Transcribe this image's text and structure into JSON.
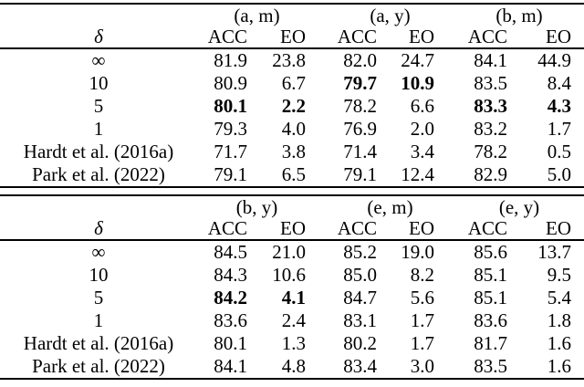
{
  "colors": {
    "background": "#ffffff",
    "text": "#000000",
    "rule": "#000000"
  },
  "tables": [
    {
      "name": "top-results-table",
      "row_axis_label": "δ",
      "groups": [
        "(a, m)",
        "(a, y)",
        "(b, m)"
      ],
      "col_headers": [
        "ACC",
        "EO",
        "ACC",
        "EO",
        "ACC",
        "EO"
      ],
      "rows": [
        {
          "label": "∞",
          "values": [
            "81.9",
            "23.8",
            "82.0",
            "24.7",
            "84.1",
            "44.9"
          ],
          "bold": []
        },
        {
          "label": "10",
          "values": [
            "80.9",
            "6.7",
            "79.7",
            "10.9",
            "83.5",
            "8.4"
          ],
          "bold": [
            2,
            3
          ]
        },
        {
          "label": "5",
          "values": [
            "80.1",
            "2.2",
            "78.2",
            "6.6",
            "83.3",
            "4.3"
          ],
          "bold": [
            0,
            1,
            4,
            5
          ]
        },
        {
          "label": "1",
          "values": [
            "79.3",
            "4.0",
            "76.9",
            "2.0",
            "83.2",
            "1.7"
          ],
          "bold": []
        },
        {
          "label": "Hardt et al. (2016a)",
          "values": [
            "71.7",
            "3.8",
            "71.4",
            "3.4",
            "78.2",
            "0.5"
          ],
          "bold": []
        },
        {
          "label": "Park et al. (2022)",
          "values": [
            "79.1",
            "6.5",
            "79.1",
            "12.4",
            "82.9",
            "5.0"
          ],
          "bold": []
        }
      ]
    },
    {
      "name": "bottom-results-table",
      "row_axis_label": "δ",
      "groups": [
        "(b, y)",
        "(e, m)",
        "(e, y)"
      ],
      "col_headers": [
        "ACC",
        "EO",
        "ACC",
        "EO",
        "ACC",
        "EO"
      ],
      "rows": [
        {
          "label": "∞",
          "values": [
            "84.5",
            "21.0",
            "85.2",
            "19.0",
            "85.6",
            "13.7"
          ],
          "bold": []
        },
        {
          "label": "10",
          "values": [
            "84.3",
            "10.6",
            "85.0",
            "8.2",
            "85.1",
            "9.5"
          ],
          "bold": []
        },
        {
          "label": "5",
          "values": [
            "84.2",
            "4.1",
            "84.7",
            "5.6",
            "85.1",
            "5.4"
          ],
          "bold": [
            0,
            1
          ]
        },
        {
          "label": "1",
          "values": [
            "83.6",
            "2.4",
            "83.1",
            "1.7",
            "83.6",
            "1.8"
          ],
          "bold": []
        },
        {
          "label": "Hardt et al. (2016a)",
          "values": [
            "80.1",
            "1.3",
            "80.2",
            "1.7",
            "81.7",
            "1.6"
          ],
          "bold": []
        },
        {
          "label": "Park et al. (2022)",
          "values": [
            "84.1",
            "4.8",
            "83.4",
            "3.0",
            "83.5",
            "1.6"
          ],
          "bold": []
        }
      ]
    }
  ]
}
